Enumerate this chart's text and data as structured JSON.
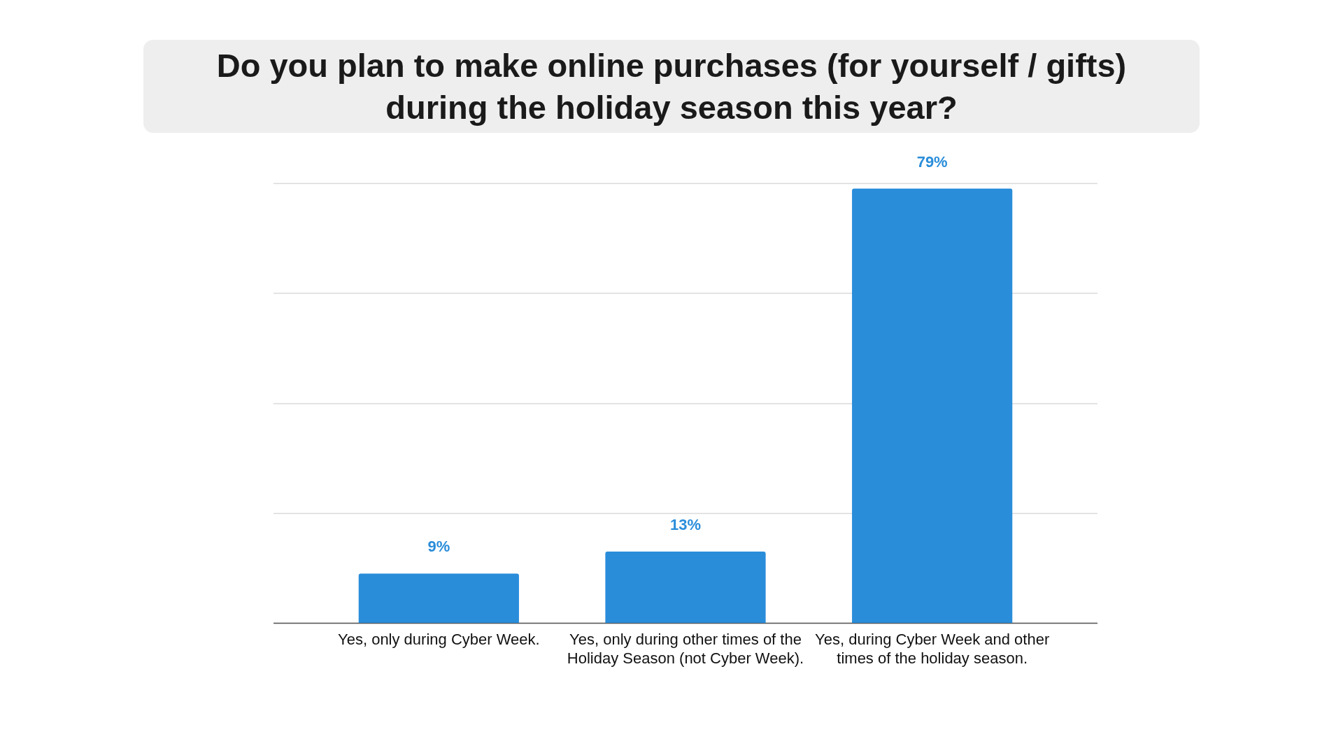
{
  "chart_data": {
    "type": "bar",
    "title": "Do you plan to make online purchases (for yourself / gifts) during the holiday season this year?",
    "categories": [
      "Yes, only during Cyber Week.",
      "Yes, only during other times of the Holiday Season (not Cyber Week).",
      "Yes, during Cyber Week and other times of the holiday season."
    ],
    "values": [
      9,
      13,
      79
    ],
    "color": "#2a8dda",
    "value_labels": [
      "9%",
      "13%",
      "79%"
    ],
    "ylim": [
      0,
      80
    ],
    "yticks": [
      {
        "value": 0,
        "label": null
      },
      {
        "value": 20,
        "label": null
      },
      {
        "value": 40,
        "label": null
      },
      {
        "value": 60,
        "label": null
      },
      {
        "value": 80,
        "label": null
      }
    ],
    "tick_labels": "x",
    "grid": "y",
    "legend": false
  }
}
